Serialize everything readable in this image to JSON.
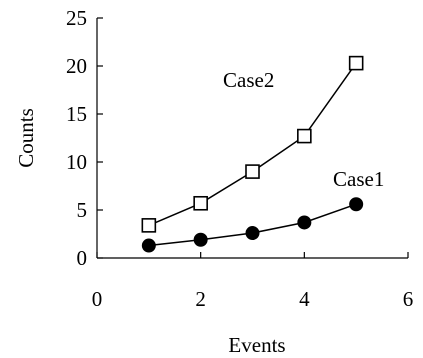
{
  "chart_data": {
    "type": "line",
    "xlabel": "Events",
    "ylabel": "Counts",
    "xlim": [
      0,
      6
    ],
    "ylim": [
      0,
      25
    ],
    "x_ticks": [
      0,
      2,
      4,
      6
    ],
    "y_ticks": [
      0,
      5,
      10,
      15,
      20,
      25
    ],
    "grid": false,
    "series": [
      {
        "name": "Case2",
        "marker": "open-square",
        "x": [
          1,
          2,
          3,
          4,
          5
        ],
        "y": [
          3.4,
          5.7,
          9.0,
          12.7,
          20.3
        ]
      },
      {
        "name": "Case1",
        "marker": "filled-circle",
        "x": [
          1,
          2,
          3,
          4,
          5
        ],
        "y": [
          1.3,
          1.9,
          2.6,
          3.7,
          5.6
        ]
      }
    ]
  }
}
